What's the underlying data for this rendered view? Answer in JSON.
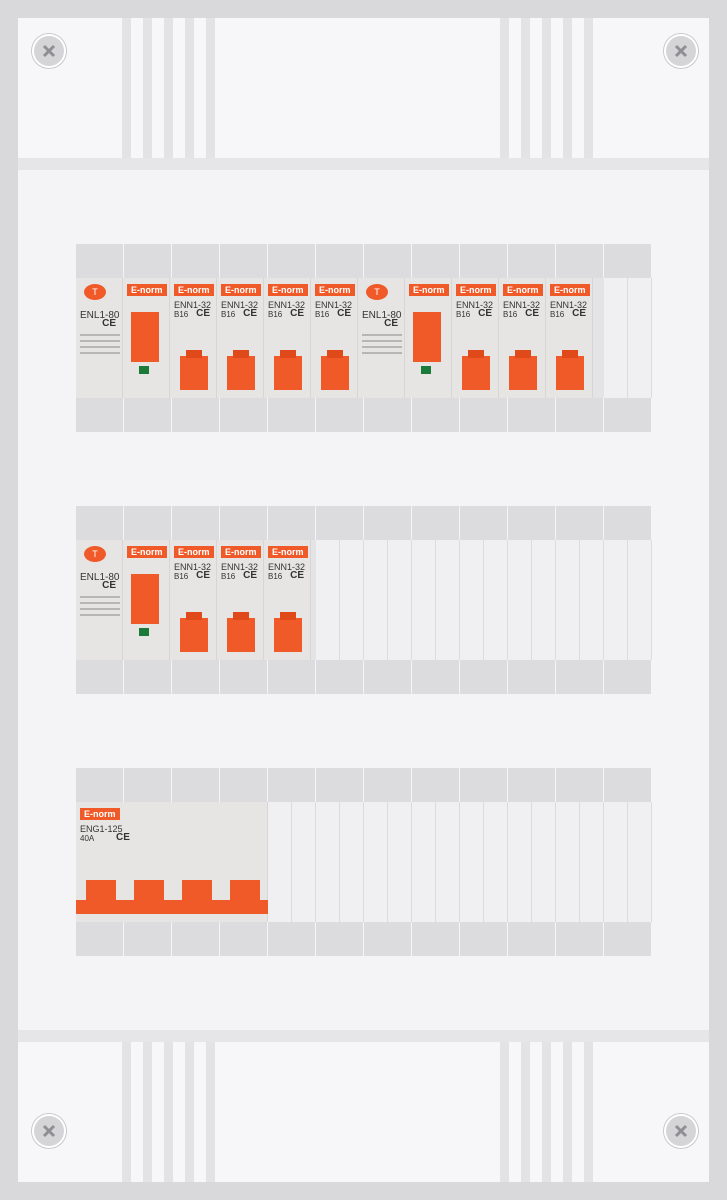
{
  "brand": "E-norm",
  "rcd_logo": "T",
  "ce_mark": "CE",
  "rows": [
    {
      "rcd1": "ENL1-80",
      "mcbs1": [
        {
          "model": "ENN1-32",
          "rating": "B16"
        },
        {
          "model": "ENN1-32",
          "rating": "B16"
        },
        {
          "model": "ENN1-32",
          "rating": "B16"
        },
        {
          "model": "ENN1-32",
          "rating": "B16"
        }
      ],
      "rcd2": "ENL1-80",
      "mcbs2": [
        {
          "model": "ENN1-32",
          "rating": "B16"
        },
        {
          "model": "ENN1-32",
          "rating": "B16"
        },
        {
          "model": "ENN1-32",
          "rating": "B16"
        }
      ]
    },
    {
      "rcd1": "ENL1-80",
      "mcbs1": [
        {
          "model": "ENN1-32",
          "rating": "B16"
        },
        {
          "model": "ENN1-32",
          "rating": "B16"
        },
        {
          "model": "ENN1-32",
          "rating": "B16"
        }
      ]
    },
    {
      "main_switch": {
        "model": "ENG1-125",
        "rating": "40A"
      }
    }
  ],
  "colors": {
    "accent": "#f05a28",
    "indicator": "#1a7a3a"
  },
  "icons": [
    "screw-icon"
  ]
}
